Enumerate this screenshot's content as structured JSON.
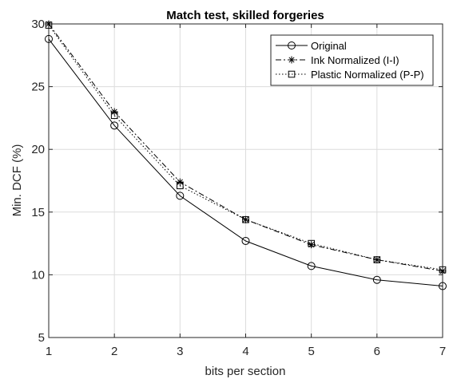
{
  "chart_data": {
    "type": "line",
    "title": "Match test, skilled forgeries",
    "xlabel": "bits per section",
    "ylabel": "Min. DCF (%)",
    "xlim": [
      1,
      7
    ],
    "ylim": [
      5,
      30
    ],
    "xticks": [
      "1",
      "2",
      "3",
      "4",
      "5",
      "6",
      "7"
    ],
    "yticks": [
      "5",
      "10",
      "15",
      "20",
      "25",
      "30"
    ],
    "grid": true,
    "legend_position": "top-right",
    "x": [
      1,
      2,
      3,
      4,
      5,
      6,
      7
    ],
    "series": [
      {
        "name": "Original",
        "values": [
          28.8,
          21.9,
          16.3,
          12.7,
          10.7,
          9.6,
          9.1
        ],
        "marker": "circle",
        "line_style": "solid",
        "color": "#000000"
      },
      {
        "name": "Ink Normalized (I-I)",
        "values": [
          30.0,
          23.0,
          17.4,
          14.4,
          12.4,
          11.2,
          10.3
        ],
        "marker": "asterisk",
        "line_style": "dashdot",
        "color": "#000000"
      },
      {
        "name": "Plastic Normalized (P-P)",
        "values": [
          29.9,
          22.7,
          17.1,
          14.4,
          12.5,
          11.2,
          10.4
        ],
        "marker": "square",
        "line_style": "dotted",
        "color": "#000000"
      }
    ]
  }
}
